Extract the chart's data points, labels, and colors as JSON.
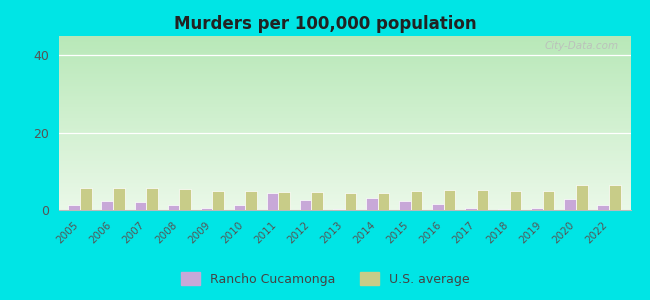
{
  "title": "Murders per 100,000 population",
  "years": [
    2005,
    2006,
    2007,
    2008,
    2009,
    2010,
    2011,
    2012,
    2013,
    2014,
    2015,
    2016,
    2017,
    2018,
    2019,
    2020,
    2022
  ],
  "rancho": [
    1.2,
    2.2,
    2.1,
    1.4,
    0.5,
    1.2,
    4.5,
    2.5,
    0.3,
    3.0,
    2.2,
    1.5,
    0.4,
    0.3,
    0.4,
    2.8,
    1.2
  ],
  "us_avg": [
    5.6,
    5.7,
    5.6,
    5.4,
    5.0,
    4.8,
    4.7,
    4.7,
    4.5,
    4.4,
    4.9,
    5.3,
    5.3,
    5.0,
    5.0,
    6.5,
    6.5
  ],
  "rancho_color": "#c8a8d8",
  "us_color": "#c8cc88",
  "background_top": "#b8e8b8",
  "background_bottom": "#eaf8e8",
  "outer_bg": "#00e5e5",
  "ylim": [
    0,
    45
  ],
  "yticks": [
    0,
    20,
    40
  ],
  "bar_width": 0.35,
  "legend_rancho": "Rancho Cucamonga",
  "legend_us": "U.S. average",
  "watermark": "City-Data.com"
}
